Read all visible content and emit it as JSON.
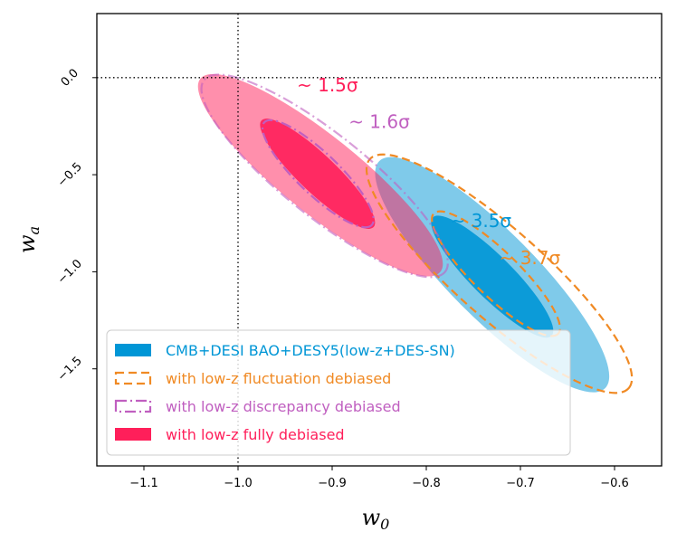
{
  "chart_data": {
    "type": "contour",
    "xlabel": "w",
    "xlabel_sub": "0",
    "ylabel": "w",
    "ylabel_sub": "a",
    "xlim": [
      -1.15,
      -0.55
    ],
    "ylim": [
      -2.0,
      0.33
    ],
    "xticks": [
      {
        "value": -1.1,
        "label": "−1.1"
      },
      {
        "value": -1.0,
        "label": "−1.0"
      },
      {
        "value": -0.9,
        "label": "−0.9"
      },
      {
        "value": -0.8,
        "label": "−0.8"
      },
      {
        "value": -0.7,
        "label": "−0.7"
      },
      {
        "value": -0.6,
        "label": "−0.6"
      }
    ],
    "yticks": [
      {
        "value": 0.0,
        "label": "0.0"
      },
      {
        "value": -0.5,
        "label": "−0.5"
      },
      {
        "value": -1.0,
        "label": "−1.0"
      },
      {
        "value": -1.5,
        "label": "−1.5"
      }
    ],
    "reference_lines": {
      "w0": -1.0,
      "wa": 0.0
    },
    "series": [
      {
        "name": "CMB+DESI BAO+DESY5(low-z+DES-SN)",
        "style": "filled",
        "color": "#0096d6",
        "outer": {
          "x1": -0.85,
          "y1": -0.43,
          "x2": -0.61,
          "y2": -1.6,
          "half_width": 0.046
        },
        "inner": {
          "x1": -0.793,
          "y1": -0.72,
          "x2": -0.667,
          "y2": -1.33,
          "half_width": 0.022
        }
      },
      {
        "name": "with low-z fluctuation debiased",
        "style": "dashed",
        "color": "#f08a24",
        "outer": {
          "x1": -0.86,
          "y1": -0.42,
          "x2": -0.585,
          "y2": -1.6,
          "half_width": 0.047
        },
        "inner": {
          "x1": -0.792,
          "y1": -0.7,
          "x2": -0.66,
          "y2": -1.32,
          "half_width": 0.024
        }
      },
      {
        "name": "with low-z discrepancy debiased",
        "style": "dashdot",
        "color": "#c05fc0",
        "outer": {
          "x1": -1.036,
          "y1": -0.012,
          "x2": -0.78,
          "y2": -1.0,
          "half_width": 0.044
        },
        "inner": {
          "x1": -0.972,
          "y1": -0.23,
          "x2": -0.858,
          "y2": -0.76,
          "half_width": 0.022
        }
      },
      {
        "name": "with low-z fully debiased",
        "style": "filled",
        "color": "#ff1f5a",
        "outer": {
          "x1": -1.04,
          "y1": -0.005,
          "x2": -0.785,
          "y2": -1.0,
          "half_width": 0.041
        },
        "inner": {
          "x1": -0.975,
          "y1": -0.22,
          "x2": -0.856,
          "y2": -0.77,
          "half_width": 0.02
        }
      }
    ],
    "annotations": [
      {
        "text": "~ 1.5σ",
        "x": -0.905,
        "y": -0.07,
        "color": "#ff1f5a"
      },
      {
        "text": "~ 1.6σ",
        "x": -0.85,
        "y": -0.26,
        "color": "#c05fc0"
      },
      {
        "text": "~ 3.5σ",
        "x": -0.742,
        "y": -0.77,
        "color": "#0096d6"
      },
      {
        "text": "~ 3.7σ",
        "x": -0.69,
        "y": -0.96,
        "color": "#f08a24"
      }
    ],
    "legend": {
      "location": "lower-left"
    }
  }
}
